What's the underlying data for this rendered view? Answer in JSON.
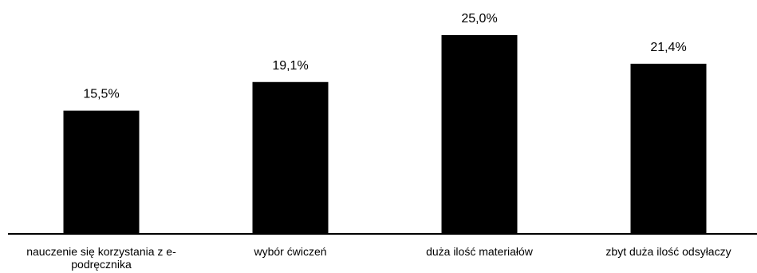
{
  "chart_data": {
    "type": "bar",
    "categories": [
      "nauczenie się korzystania z e-podręcznika",
      "wybór ćwiczeń",
      "duża ilość materiałów",
      "zbyt duża ilość odsyłaczy"
    ],
    "values": [
      15.5,
      19.1,
      25.0,
      21.4
    ],
    "data_labels": [
      "15,5%",
      "19,1%",
      "25,0%",
      "21,4%"
    ],
    "title": "",
    "xlabel": "",
    "ylabel": "",
    "ylim": [
      0,
      25
    ],
    "grid": false,
    "legend": "none",
    "bar_color": "#000000",
    "axis_color": "#000000"
  }
}
